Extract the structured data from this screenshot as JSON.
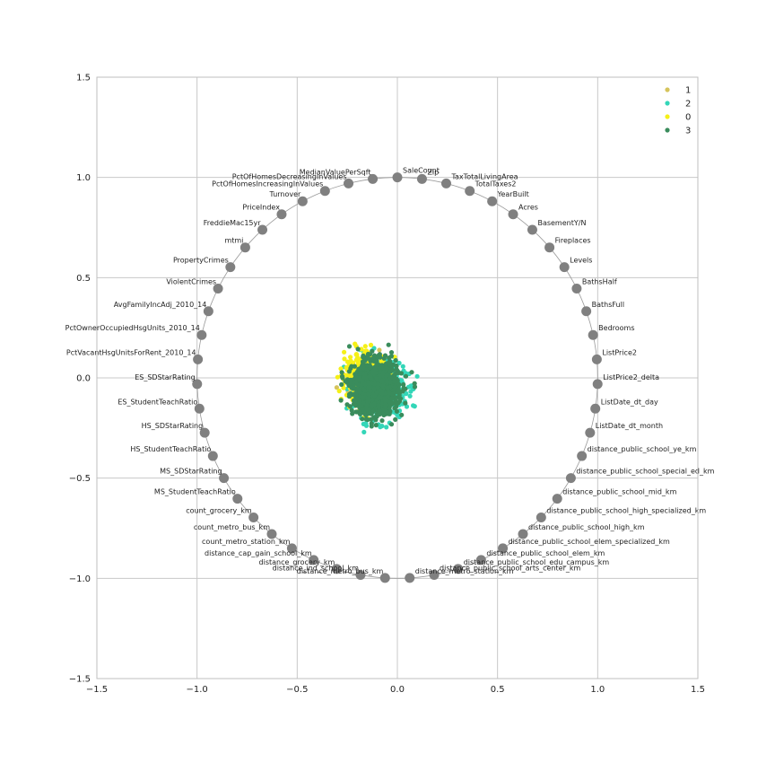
{
  "chart_data": {
    "type": "scatter",
    "title": "",
    "xlabel": "",
    "ylabel": "",
    "xlim": [
      -1.5,
      1.5
    ],
    "ylim": [
      -1.5,
      1.5
    ],
    "grid": true,
    "legend_position": "top-right",
    "x_ticks": [
      -1.5,
      -1.0,
      -0.5,
      0.0,
      0.5,
      1.0,
      1.5
    ],
    "y_ticks": [
      -1.5,
      -1.0,
      -0.5,
      0.0,
      0.5,
      1.0,
      1.5
    ],
    "x_tick_labels": [
      "−1.5",
      "−1.0",
      "−0.5",
      "0.0",
      "0.5",
      "1.0",
      "1.5"
    ],
    "y_tick_labels": [
      "−1.5",
      "−1.0",
      "−0.5",
      "0.0",
      "0.5",
      "1.0",
      "1.5"
    ],
    "anchor_circle": {
      "radius": 1.0,
      "color": "#808080"
    },
    "anchors": [
      "SaleCount",
      "Zip",
      "TaxTotalLivingArea",
      "TotalTaxes2",
      "YearBuilt",
      "Acres",
      "BasementY/N",
      "Fireplaces",
      "Levels",
      "BathsHalf",
      "BathsFull",
      "Bedrooms",
      "ListPrice2",
      "ListPrice2_delta",
      "ListDate_dt_day",
      "ListDate_dt_month",
      "distance_public_school_ye_km",
      "distance_public_school_special_ed_km",
      "distance_public_school_mid_km",
      "distance_public_school_high_specialized_km",
      "distance_public_school_high_km",
      "distance_public_school_elem_specialized_km",
      "distance_public_school_elem_km",
      "distance_public_school_edu_campus_km",
      "distance_public_school_arts_center_km",
      "distance_metro_station_km",
      "distance_metro_bus_km",
      "distance_ind_school_km",
      "distance_grocery_km",
      "distance_cap_gain_school_km",
      "count_metro_station_km",
      "count_metro_bus_km",
      "count_grocery_km",
      "MS_StudentTeachRatio",
      "MS_SDStarRating",
      "HS_StudentTeachRatio",
      "HS_SDStarRating",
      "ES_StudentTeachRatio",
      "ES_SDStarRating",
      "PctVacantHsgUnitsForRent_2010_14",
      "PctOwnerOccupiedHsgUnits_2010_14",
      "AvgFamilyIncAdj_2010_14",
      "ViolentCrimes",
      "PropertyCrimes",
      "mtmi",
      "FreddieMac15yr",
      "PriceIndex",
      "Turnover",
      "PctOfHomesIncreasingInValues",
      "PctOfHomesDecreasingInValues",
      "MedianValuePerSqft"
    ],
    "series": [
      {
        "name": "1",
        "color": "#d6c45c",
        "center": [
          -0.14,
          -0.04
        ],
        "spread": [
          0.05,
          0.06
        ],
        "count": 200
      },
      {
        "name": "2",
        "color": "#33d6b8",
        "center": [
          -0.09,
          -0.06
        ],
        "spread": [
          0.065,
          0.07
        ],
        "count": 450
      },
      {
        "name": "0",
        "color": "#f5f018",
        "center": [
          -0.15,
          0.0
        ],
        "spread": [
          0.055,
          0.06
        ],
        "count": 450
      },
      {
        "name": "3",
        "color": "#3a8c5c",
        "center": [
          -0.11,
          -0.05
        ],
        "spread": [
          0.055,
          0.065
        ],
        "count": 1200
      }
    ],
    "legend": [
      "1",
      "2",
      "0",
      "3"
    ]
  }
}
